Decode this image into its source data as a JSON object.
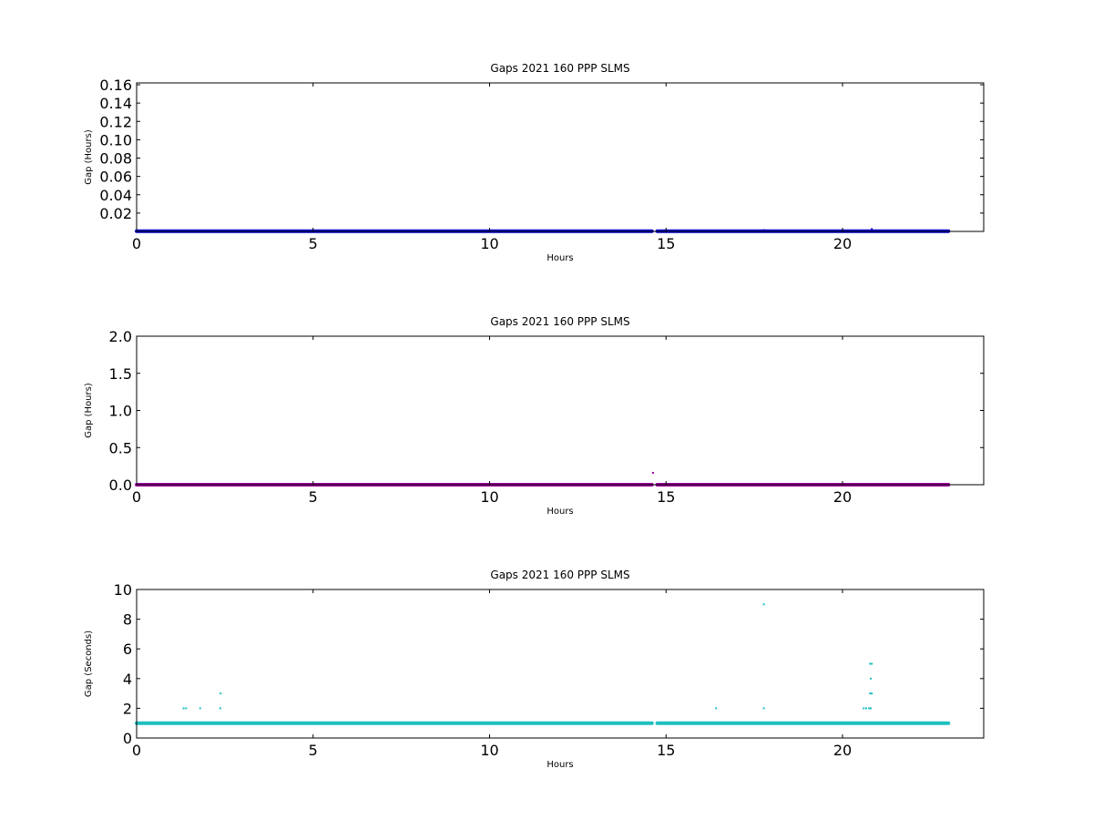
{
  "colors": {
    "background": "#ffffff",
    "axes": "#000000"
  },
  "chart_data": [
    {
      "type": "scatter",
      "title": "Gaps 2021 160 PPP  SLMS",
      "xlabel": "Hours",
      "ylabel": "Gap (Hours)",
      "xlim": [
        0,
        24
      ],
      "ylim": [
        0,
        0.162
      ],
      "xticks": [
        0,
        5,
        10,
        15,
        20
      ],
      "xtick_labels": [
        "0",
        "5",
        "10",
        "15",
        "20"
      ],
      "yticks": [
        0.02,
        0.04,
        0.06,
        0.08,
        0.1,
        0.12,
        0.14,
        0.16
      ],
      "ytick_labels": [
        "0.02",
        "0.04",
        "0.06",
        "0.08",
        "0.10",
        "0.12",
        "0.14",
        "0.16"
      ],
      "grid": false,
      "series": [
        {
          "color": "#0000cc",
          "baseline": {
            "y": 0.000278,
            "x_ranges": [
              [
                0,
                14.6
              ],
              [
                14.75,
                23.0
              ]
            ]
          },
          "points": [
            [
              17.77,
              0.00139
            ],
            [
              20.83,
              0.0025
            ]
          ]
        }
      ]
    },
    {
      "type": "scatter",
      "title": "Gaps 2021 160 PPP  SLMS",
      "xlabel": "Hours",
      "ylabel": "Gap (Hours)",
      "xlim": [
        0,
        24
      ],
      "ylim": [
        0,
        2.0
      ],
      "xticks": [
        0,
        5,
        10,
        15,
        20
      ],
      "xtick_labels": [
        "0",
        "5",
        "10",
        "15",
        "20"
      ],
      "yticks": [
        0.0,
        0.5,
        1.0,
        1.5,
        2.0
      ],
      "ytick_labels": [
        "0.0",
        "0.5",
        "1.0",
        "1.5",
        "2.0"
      ],
      "grid": false,
      "series": [
        {
          "color": "#a000a0",
          "baseline": {
            "y": 0.0,
            "x_ranges": [
              [
                0,
                14.6
              ],
              [
                14.75,
                23.0
              ]
            ]
          },
          "points": [
            [
              14.63,
              0.16
            ]
          ]
        }
      ]
    },
    {
      "type": "scatter",
      "title": "Gaps 2021 160 PPP  SLMS",
      "xlabel": "Hours",
      "ylabel": "Gap (Seconds)",
      "xlim": [
        0,
        24
      ],
      "ylim": [
        0,
        10
      ],
      "xticks": [
        0,
        5,
        10,
        15,
        20
      ],
      "xtick_labels": [
        "0",
        "5",
        "10",
        "15",
        "20"
      ],
      "yticks": [
        0,
        2,
        4,
        6,
        8,
        10
      ],
      "ytick_labels": [
        "0",
        "2",
        "4",
        "6",
        "8",
        "10"
      ],
      "grid": false,
      "series": [
        {
          "color": "#1fbfbf",
          "baseline": {
            "y": 1,
            "x_ranges": [
              [
                0,
                14.6
              ],
              [
                14.75,
                23.0
              ]
            ]
          },
          "points": [
            [
              1.33,
              2
            ],
            [
              1.4,
              2
            ],
            [
              1.8,
              2
            ],
            [
              2.37,
              2
            ],
            [
              2.38,
              3
            ],
            [
              16.42,
              2
            ],
            [
              17.77,
              2
            ],
            [
              17.77,
              9
            ],
            [
              20.6,
              2
            ],
            [
              20.67,
              2
            ],
            [
              20.75,
              2
            ],
            [
              20.8,
              2
            ],
            [
              20.78,
              3
            ],
            [
              20.83,
              3
            ],
            [
              20.8,
              4
            ],
            [
              20.78,
              5
            ],
            [
              20.83,
              5
            ]
          ]
        }
      ]
    }
  ]
}
